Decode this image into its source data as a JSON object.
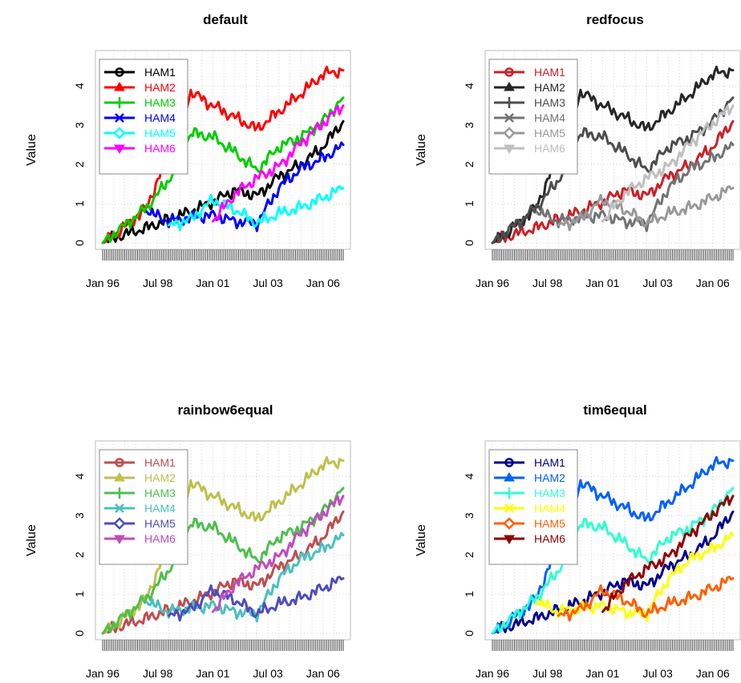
{
  "chart_data": [
    {
      "type": "line",
      "title": "default",
      "ylabel": "Value",
      "xlabel": "",
      "x_tick_labels": [
        "Jan 96",
        "Jul 98",
        "Jan 01",
        "Jul 03",
        "Jan 06"
      ],
      "y_tick_labels": [
        "0",
        "1",
        "2",
        "3",
        "4"
      ],
      "x_range": [
        "1996-01",
        "2006-12"
      ],
      "ylim": [
        0,
        4.7
      ],
      "grid": true,
      "legend_position": "top-left",
      "series": [
        {
          "name": "HAM1",
          "color": "#000000",
          "marker": "circle",
          "x": [
            "1996-01",
            "1997-01",
            "1998-01",
            "1999-01",
            "2000-01",
            "2001-01",
            "2002-01",
            "2003-01",
            "2004-01",
            "2005-01",
            "2006-01",
            "2006-12"
          ],
          "values": [
            0.0,
            0.22,
            0.38,
            0.6,
            0.8,
            1.05,
            1.35,
            1.2,
            1.7,
            2.0,
            2.45,
            3.1
          ]
        },
        {
          "name": "HAM2",
          "color": "#ff0000",
          "marker": "triangle",
          "x": [
            "1996-01",
            "1997-01",
            "1998-01",
            "1999-01",
            "2000-01",
            "2001-01",
            "2002-01",
            "2003-01",
            "2004-01",
            "2005-01",
            "2006-01",
            "2006-12"
          ],
          "values": [
            0.0,
            0.4,
            0.9,
            2.3,
            3.85,
            3.5,
            3.2,
            2.9,
            3.35,
            3.8,
            4.3,
            4.4
          ]
        },
        {
          "name": "HAM3",
          "color": "#00cd00",
          "marker": "plus",
          "x": [
            "1996-01",
            "1997-01",
            "1998-01",
            "1999-01",
            "2000-01",
            "2001-01",
            "2002-01",
            "2003-01",
            "2004-01",
            "2005-01",
            "2006-01",
            "2006-12"
          ],
          "values": [
            0.0,
            0.45,
            0.9,
            1.6,
            2.8,
            2.7,
            2.3,
            1.85,
            2.45,
            2.7,
            3.1,
            3.7
          ]
        },
        {
          "name": "HAM4",
          "color": "#0000ff",
          "marker": "cross",
          "x": [
            "1998-01",
            "1999-01",
            "2000-01",
            "2001-01",
            "2002-01",
            "2003-01",
            "2004-01",
            "2005-01",
            "2006-01",
            "2006-12"
          ],
          "values": [
            0.8,
            0.55,
            0.65,
            0.7,
            0.55,
            0.5,
            1.4,
            1.9,
            2.15,
            2.5
          ]
        },
        {
          "name": "HAM5",
          "color": "#00ffff",
          "marker": "diamond",
          "x": [
            "1999-01",
            "2000-01",
            "2001-01",
            "2002-01",
            "2003-01",
            "2004-01",
            "2005-01",
            "2006-01",
            "2006-12"
          ],
          "values": [
            0.45,
            0.6,
            1.1,
            0.85,
            0.5,
            0.75,
            0.9,
            1.15,
            1.4
          ]
        },
        {
          "name": "HAM6",
          "color": "#ff00ff",
          "marker": "triangle-down",
          "x": [
            "2001-01",
            "2002-01",
            "2003-01",
            "2004-01",
            "2005-01",
            "2006-01",
            "2006-12"
          ],
          "values": [
            0.55,
            1.25,
            1.65,
            1.95,
            2.55,
            3.05,
            3.5
          ]
        }
      ]
    },
    {
      "type": "line",
      "title": "redfocus",
      "ylabel": "Value",
      "xlabel": "",
      "x_tick_labels": [
        "Jan 96",
        "Jul 98",
        "Jan 01",
        "Jul 03",
        "Jan 06"
      ],
      "y_tick_labels": [
        "0",
        "1",
        "2",
        "3",
        "4"
      ],
      "x_range": [
        "1996-01",
        "2006-12"
      ],
      "ylim": [
        0,
        4.7
      ],
      "grid": true,
      "legend_position": "top-left",
      "series": [
        {
          "name": "HAM1",
          "color": "#cb2027",
          "marker": "circle",
          "x": [
            "1996-01",
            "1997-01",
            "1998-01",
            "1999-01",
            "2000-01",
            "2001-01",
            "2002-01",
            "2003-01",
            "2004-01",
            "2005-01",
            "2006-01",
            "2006-12"
          ],
          "values": [
            0.0,
            0.22,
            0.38,
            0.6,
            0.8,
            1.05,
            1.35,
            1.2,
            1.7,
            2.0,
            2.45,
            3.1
          ]
        },
        {
          "name": "HAM2",
          "color": "#262626",
          "marker": "triangle",
          "x": [
            "1996-01",
            "1997-01",
            "1998-01",
            "1999-01",
            "2000-01",
            "2001-01",
            "2002-01",
            "2003-01",
            "2004-01",
            "2005-01",
            "2006-01",
            "2006-12"
          ],
          "values": [
            0.0,
            0.4,
            0.9,
            2.3,
            3.85,
            3.5,
            3.2,
            2.9,
            3.35,
            3.8,
            4.3,
            4.4
          ]
        },
        {
          "name": "HAM3",
          "color": "#4d4d4d",
          "marker": "plus",
          "x": [
            "1996-01",
            "1997-01",
            "1998-01",
            "1999-01",
            "2000-01",
            "2001-01",
            "2002-01",
            "2003-01",
            "2004-01",
            "2005-01",
            "2006-01",
            "2006-12"
          ],
          "values": [
            0.0,
            0.45,
            0.9,
            1.6,
            2.8,
            2.7,
            2.3,
            1.85,
            2.45,
            2.7,
            3.1,
            3.7
          ]
        },
        {
          "name": "HAM4",
          "color": "#737373",
          "marker": "cross",
          "x": [
            "1998-01",
            "1999-01",
            "2000-01",
            "2001-01",
            "2002-01",
            "2003-01",
            "2004-01",
            "2005-01",
            "2006-01",
            "2006-12"
          ],
          "values": [
            0.8,
            0.55,
            0.65,
            0.7,
            0.55,
            0.5,
            1.4,
            1.9,
            2.15,
            2.5
          ]
        },
        {
          "name": "HAM5",
          "color": "#999999",
          "marker": "diamond",
          "x": [
            "1999-01",
            "2000-01",
            "2001-01",
            "2002-01",
            "2003-01",
            "2004-01",
            "2005-01",
            "2006-01",
            "2006-12"
          ],
          "values": [
            0.45,
            0.6,
            1.1,
            0.85,
            0.5,
            0.75,
            0.9,
            1.15,
            1.4
          ]
        },
        {
          "name": "HAM6",
          "color": "#bfbfbf",
          "marker": "triangle-down",
          "x": [
            "2001-01",
            "2002-01",
            "2003-01",
            "2004-01",
            "2005-01",
            "2006-01",
            "2006-12"
          ],
          "values": [
            0.55,
            1.25,
            1.65,
            1.95,
            2.55,
            3.05,
            3.5
          ]
        }
      ]
    },
    {
      "type": "line",
      "title": "rainbow6equal",
      "ylabel": "Value",
      "xlabel": "",
      "x_tick_labels": [
        "Jan 96",
        "Jul 98",
        "Jan 01",
        "Jul 03",
        "Jan 06"
      ],
      "y_tick_labels": [
        "0",
        "1",
        "2",
        "3",
        "4"
      ],
      "x_range": [
        "1996-01",
        "2006-12"
      ],
      "ylim": [
        0,
        4.7
      ],
      "grid": true,
      "legend_position": "top-left",
      "series": [
        {
          "name": "HAM1",
          "color": "#bf4d4d",
          "marker": "circle",
          "x": [
            "1996-01",
            "1997-01",
            "1998-01",
            "1999-01",
            "2000-01",
            "2001-01",
            "2002-01",
            "2003-01",
            "2004-01",
            "2005-01",
            "2006-01",
            "2006-12"
          ],
          "values": [
            0.0,
            0.22,
            0.38,
            0.6,
            0.8,
            1.05,
            1.35,
            1.2,
            1.7,
            2.0,
            2.45,
            3.1
          ]
        },
        {
          "name": "HAM2",
          "color": "#bfbf4d",
          "marker": "triangle",
          "x": [
            "1996-01",
            "1997-01",
            "1998-01",
            "1999-01",
            "2000-01",
            "2001-01",
            "2002-01",
            "2003-01",
            "2004-01",
            "2005-01",
            "2006-01",
            "2006-12"
          ],
          "values": [
            0.0,
            0.4,
            0.9,
            2.3,
            3.85,
            3.5,
            3.2,
            2.9,
            3.35,
            3.8,
            4.3,
            4.4
          ]
        },
        {
          "name": "HAM3",
          "color": "#4dbf4d",
          "marker": "plus",
          "x": [
            "1996-01",
            "1997-01",
            "1998-01",
            "1999-01",
            "2000-01",
            "2001-01",
            "2002-01",
            "2003-01",
            "2004-01",
            "2005-01",
            "2006-01",
            "2006-12"
          ],
          "values": [
            0.0,
            0.45,
            0.9,
            1.6,
            2.8,
            2.7,
            2.3,
            1.85,
            2.45,
            2.7,
            3.1,
            3.7
          ]
        },
        {
          "name": "HAM4",
          "color": "#4dbfbf",
          "marker": "cross",
          "x": [
            "1998-01",
            "1999-01",
            "2000-01",
            "2001-01",
            "2002-01",
            "2003-01",
            "2004-01",
            "2005-01",
            "2006-01",
            "2006-12"
          ],
          "values": [
            0.8,
            0.55,
            0.65,
            0.7,
            0.55,
            0.5,
            1.4,
            1.9,
            2.15,
            2.5
          ]
        },
        {
          "name": "HAM5",
          "color": "#4d4dbf",
          "marker": "diamond",
          "x": [
            "1999-01",
            "2000-01",
            "2001-01",
            "2002-01",
            "2003-01",
            "2004-01",
            "2005-01",
            "2006-01",
            "2006-12"
          ],
          "values": [
            0.45,
            0.6,
            1.1,
            0.85,
            0.5,
            0.75,
            0.9,
            1.15,
            1.4
          ]
        },
        {
          "name": "HAM6",
          "color": "#bf4dbf",
          "marker": "triangle-down",
          "x": [
            "2001-01",
            "2002-01",
            "2003-01",
            "2004-01",
            "2005-01",
            "2006-01",
            "2006-12"
          ],
          "values": [
            0.55,
            1.25,
            1.65,
            1.95,
            2.55,
            3.05,
            3.5
          ]
        }
      ]
    },
    {
      "type": "line",
      "title": "tim6equal",
      "ylabel": "Value",
      "xlabel": "",
      "x_tick_labels": [
        "Jan 96",
        "Jul 98",
        "Jan 01",
        "Jul 03",
        "Jan 06"
      ],
      "y_tick_labels": [
        "0",
        "1",
        "2",
        "3",
        "4"
      ],
      "x_range": [
        "1996-01",
        "2006-12"
      ],
      "ylim": [
        0,
        4.7
      ],
      "grid": true,
      "legend_position": "top-left",
      "series": [
        {
          "name": "HAM1",
          "color": "#00008f",
          "marker": "circle",
          "x": [
            "1996-01",
            "1997-01",
            "1998-01",
            "1999-01",
            "2000-01",
            "2001-01",
            "2002-01",
            "2003-01",
            "2004-01",
            "2005-01",
            "2006-01",
            "2006-12"
          ],
          "values": [
            0.0,
            0.22,
            0.38,
            0.6,
            0.8,
            1.05,
            1.35,
            1.2,
            1.7,
            2.0,
            2.45,
            3.1
          ]
        },
        {
          "name": "HAM2",
          "color": "#005fff",
          "marker": "triangle",
          "x": [
            "1996-01",
            "1997-01",
            "1998-01",
            "1999-01",
            "2000-01",
            "2001-01",
            "2002-01",
            "2003-01",
            "2004-01",
            "2005-01",
            "2006-01",
            "2006-12"
          ],
          "values": [
            0.0,
            0.4,
            0.9,
            2.3,
            3.85,
            3.5,
            3.2,
            2.9,
            3.35,
            3.8,
            4.3,
            4.4
          ]
        },
        {
          "name": "HAM3",
          "color": "#2fffcf",
          "marker": "plus",
          "x": [
            "1996-01",
            "1997-01",
            "1998-01",
            "1999-01",
            "2000-01",
            "2001-01",
            "2002-01",
            "2003-01",
            "2004-01",
            "2005-01",
            "2006-01",
            "2006-12"
          ],
          "values": [
            0.0,
            0.45,
            0.9,
            1.6,
            2.8,
            2.7,
            2.3,
            1.85,
            2.45,
            2.7,
            3.1,
            3.7
          ]
        },
        {
          "name": "HAM4",
          "color": "#ffff00",
          "marker": "cross",
          "x": [
            "1998-01",
            "1999-01",
            "2000-01",
            "2001-01",
            "2002-01",
            "2003-01",
            "2004-01",
            "2005-01",
            "2006-01",
            "2006-12"
          ],
          "values": [
            0.8,
            0.55,
            0.65,
            0.7,
            0.55,
            0.5,
            1.4,
            1.9,
            2.15,
            2.5
          ]
        },
        {
          "name": "HAM5",
          "color": "#ff5f00",
          "marker": "diamond",
          "x": [
            "1999-01",
            "2000-01",
            "2001-01",
            "2002-01",
            "2003-01",
            "2004-01",
            "2005-01",
            "2006-01",
            "2006-12"
          ],
          "values": [
            0.45,
            0.6,
            1.1,
            0.85,
            0.5,
            0.75,
            0.9,
            1.15,
            1.4
          ]
        },
        {
          "name": "HAM6",
          "color": "#8f0000",
          "marker": "triangle-down",
          "x": [
            "2001-01",
            "2002-01",
            "2003-01",
            "2004-01",
            "2005-01",
            "2006-01",
            "2006-12"
          ],
          "values": [
            0.55,
            1.25,
            1.65,
            1.95,
            2.55,
            3.05,
            3.5
          ]
        }
      ]
    }
  ]
}
